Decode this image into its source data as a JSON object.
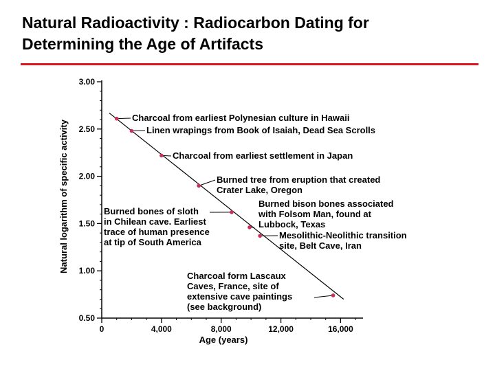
{
  "slide": {
    "title_line1": "Natural Radioactivity : Radiocarbon Dating for",
    "title_line2": "Determining the Age of Artifacts",
    "rule_color": "#e0141e"
  },
  "chart_data": {
    "type": "scatter",
    "title": "",
    "xlabel": "Age (years)",
    "ylabel": "Natural logarithm of specific activity",
    "xlim": [
      0,
      17500
    ],
    "ylim": [
      0.5,
      3.0
    ],
    "x_ticks": [
      0,
      4000,
      8000,
      12000,
      16000
    ],
    "x_tick_labels": [
      "0",
      "4,000",
      "8,000",
      "12,000",
      "16,000"
    ],
    "y_ticks": [
      0.5,
      1.0,
      1.5,
      2.0,
      2.5,
      3.0
    ],
    "y_tick_labels": [
      "0.50",
      "1.00",
      "1.50",
      "2.00",
      "2.50",
      "3.00"
    ],
    "grid": false,
    "point_color": "#c8325a",
    "trend_line": {
      "x": [
        500,
        16200
      ],
      "y": [
        2.67,
        0.7
      ]
    },
    "points": [
      {
        "x": 1000,
        "y": 2.61,
        "label": [
          "Charcoal from earliest Polynesian culture in Hawaii"
        ]
      },
      {
        "x": 2000,
        "y": 2.48,
        "label": [
          "Linen wrapings from Book of Isaiah, Dead Sea Scrolls"
        ]
      },
      {
        "x": 4000,
        "y": 2.22,
        "label": [
          "Charcoal from earliest settlement in Japan"
        ]
      },
      {
        "x": 6500,
        "y": 1.9,
        "label": [
          "Burned tree from eruption that created",
          "Crater Lake, Oregon"
        ]
      },
      {
        "x": 8700,
        "y": 1.62,
        "label": [
          "Burned bones of sloth",
          "in Chilean cave. Earliest",
          "trace of human presence",
          "at tip of South America"
        ]
      },
      {
        "x": 9900,
        "y": 1.46,
        "label": [
          "Burned bison bones associated",
          "with Folsom Man, found at",
          "Lubbock, Texas"
        ]
      },
      {
        "x": 10600,
        "y": 1.37,
        "label": [
          "Mesolithic-Neolithic transition",
          "site, Belt Cave, Iran"
        ]
      },
      {
        "x": 15500,
        "y": 0.74,
        "label": [
          "Charcoal form Lascaux",
          "Caves, France, site of",
          "extensive cave paintings",
          "(see background)"
        ]
      }
    ]
  }
}
